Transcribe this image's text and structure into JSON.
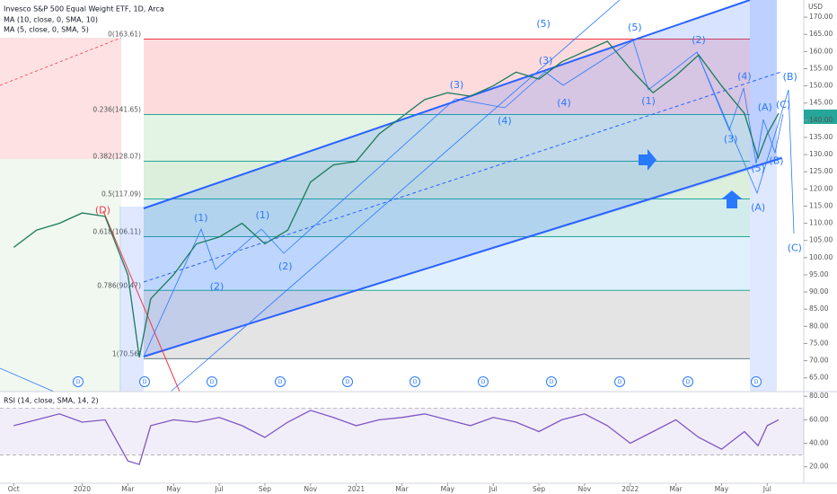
{
  "chart_data": [
    {
      "type": "line",
      "title": "Invesco S&P 500 Equal Weight ETF, 1D, Arca",
      "indicators": [
        "MA (10, close, 0, SMA, 10)",
        "MA (5, close, 0, SMA, 5)"
      ],
      "y_unit": "USD",
      "x": [
        0,
        1,
        2,
        3,
        4,
        5,
        5.5,
        6,
        7,
        8,
        9,
        10,
        11,
        12,
        13,
        14,
        15,
        16,
        17,
        18,
        19,
        20,
        21,
        22,
        23,
        24,
        25,
        26,
        27,
        28,
        29,
        30,
        31,
        32,
        32.6,
        33,
        33.5
      ],
      "series": [
        {
          "color": "#1b7a5a",
          "values": [
            103,
            108,
            110,
            113,
            112,
            95,
            71,
            88,
            95,
            104,
            106,
            110,
            104,
            108,
            122,
            127,
            128,
            136,
            141,
            146,
            148,
            147,
            150,
            154,
            152,
            157,
            160,
            163,
            155,
            148,
            153,
            159,
            150,
            142,
            129,
            136,
            142
          ]
        }
      ],
      "xlim": [
        -0.6,
        34.6
      ],
      "xticks": [
        {
          "value": 0,
          "label": "Oct"
        },
        {
          "value": 3,
          "label": "2020"
        },
        {
          "value": 5,
          "label": "Mar"
        },
        {
          "value": 7,
          "label": "May"
        },
        {
          "value": 9,
          "label": "Jul"
        },
        {
          "value": 11,
          "label": "Sep"
        },
        {
          "value": 13,
          "label": "Nov"
        },
        {
          "value": 15,
          "label": "2021"
        },
        {
          "value": 17,
          "label": "Mar"
        },
        {
          "value": 19,
          "label": "May"
        },
        {
          "value": 21,
          "label": "Jul"
        },
        {
          "value": 23,
          "label": "Sep"
        },
        {
          "value": 25,
          "label": "Nov"
        },
        {
          "value": 27,
          "label": "2022"
        },
        {
          "value": 29,
          "label": "Mar"
        },
        {
          "value": 31,
          "label": "May"
        },
        {
          "value": 33,
          "label": "Jul"
        }
      ],
      "ylim": [
        61,
        175
      ],
      "yticks": [
        {
          "value": 65,
          "label": "65.00"
        },
        {
          "value": 70,
          "label": "70.00"
        },
        {
          "value": 75,
          "label": "75.00"
        },
        {
          "value": 80,
          "label": "80.00"
        },
        {
          "value": 85,
          "label": "85.00"
        },
        {
          "value": 90,
          "label": "90.00"
        },
        {
          "value": 95,
          "label": "95.00"
        },
        {
          "value": 100,
          "label": "100.00"
        },
        {
          "value": 105,
          "label": "105.00"
        },
        {
          "value": 110,
          "label": "110.00"
        },
        {
          "value": 115,
          "label": "115.00"
        },
        {
          "value": 120,
          "label": "120.00"
        },
        {
          "value": 125,
          "label": "125.00"
        },
        {
          "value": 130,
          "label": "130.00"
        },
        {
          "value": 135,
          "label": "135.00"
        },
        {
          "value": 140,
          "label": "140.00"
        },
        {
          "value": 145,
          "label": "145.00"
        },
        {
          "value": 150,
          "label": "150.00"
        },
        {
          "value": 155,
          "label": "155.00"
        },
        {
          "value": 160,
          "label": "160.00"
        },
        {
          "value": 165,
          "label": "165.00"
        },
        {
          "value": 170,
          "label": "170.00"
        }
      ],
      "fib_levels": [
        {
          "label": "0(163.61)",
          "value": 163.61,
          "color": "rgba(242,54,69,0.18)"
        },
        {
          "label": "0.236(141.65)",
          "value": 141.65,
          "color": "rgba(129,199,132,0.22)"
        },
        {
          "label": "0.382(128.07)",
          "value": 128.07,
          "color": "rgba(76,175,80,0.2)"
        },
        {
          "label": "0.5(117.09)",
          "value": 117.09,
          "color": "rgba(0,150,136,0.18)"
        },
        {
          "label": "0.618(106.11)",
          "value": 106.11,
          "color": "rgba(100,181,246,0.2)"
        },
        {
          "label": "0.786(90.47)",
          "value": 90.47,
          "color": "rgba(120,120,120,0.2)"
        },
        {
          "label": "1(70.56)",
          "value": 70.56,
          "color": "#607d8b"
        }
      ],
      "waves": [
        {
          "label": "(D)",
          "x": 3.9,
          "y": 113.7,
          "color": "#f23645"
        },
        {
          "label": "(1)",
          "x": 8.2,
          "y": 111.4,
          "color": "#2979ff"
        },
        {
          "label": "(2)",
          "x": 8.9,
          "y": 91.5,
          "color": "#2979ff"
        },
        {
          "label": "(1)",
          "x": 10.9,
          "y": 112.2,
          "color": "#2979ff"
        },
        {
          "label": "(2)",
          "x": 11.9,
          "y": 97.3,
          "color": "#2979ff"
        },
        {
          "label": "(3)",
          "x": 19.4,
          "y": 150.1,
          "color": "#2979ff"
        },
        {
          "label": "(4)",
          "x": 21.5,
          "y": 139.7,
          "color": "#2979ff"
        },
        {
          "label": "(5)",
          "x": 23.2,
          "y": 167.9,
          "color": "#2979ff"
        },
        {
          "label": "(3)",
          "x": 23.3,
          "y": 157.2,
          "color": "#2979ff"
        },
        {
          "label": "(4)",
          "x": 24.1,
          "y": 144.9,
          "color": "#2979ff"
        },
        {
          "label": "(5)",
          "x": 27.2,
          "y": 166.9,
          "color": "#2979ff"
        },
        {
          "label": "(1)",
          "x": 27.8,
          "y": 145.4,
          "color": "#2979ff"
        },
        {
          "label": "(2)",
          "x": 30.0,
          "y": 163.2,
          "color": "#2979ff"
        },
        {
          "label": "(4)",
          "x": 32.0,
          "y": 152.7,
          "color": "#2979ff"
        },
        {
          "label": "(3)",
          "x": 31.4,
          "y": 134.4,
          "color": "#2979ff"
        },
        {
          "label": "(A)",
          "x": 32.9,
          "y": 143.6,
          "color": "#2979ff"
        },
        {
          "label": "(C)",
          "x": 33.7,
          "y": 144.4,
          "color": "#2979ff"
        },
        {
          "label": "(B)",
          "x": 34.0,
          "y": 152.5,
          "color": "#2979ff"
        },
        {
          "label": "(5)",
          "x": 32.6,
          "y": 125.8,
          "color": "#2979ff"
        },
        {
          "label": "(B)",
          "x": 33.4,
          "y": 128.1,
          "color": "#2979ff"
        },
        {
          "label": "(A)",
          "x": 32.6,
          "y": 114.5,
          "color": "#2979ff"
        },
        {
          "label": "(C)",
          "x": 34.2,
          "y": 102.7,
          "color": "#2979ff"
        }
      ]
    },
    {
      "type": "line",
      "title": "RSI (14, close, SMA, 14, 2)",
      "x": [
        0,
        1,
        2,
        3,
        4,
        5,
        5.5,
        6,
        7,
        8,
        9,
        10,
        11,
        12,
        13,
        14,
        15,
        16,
        17,
        18,
        19,
        20,
        21,
        22,
        23,
        24,
        25,
        26,
        27,
        28,
        29,
        30,
        31,
        32,
        32.6,
        33,
        33.5
      ],
      "series": [
        {
          "color": "#7e57c2",
          "values": [
            55,
            60,
            65,
            58,
            60,
            25,
            22,
            55,
            60,
            58,
            62,
            55,
            45,
            58,
            68,
            62,
            55,
            60,
            62,
            65,
            60,
            55,
            62,
            58,
            50,
            60,
            65,
            55,
            40,
            50,
            60,
            45,
            35,
            50,
            38,
            55,
            60
          ]
        }
      ],
      "ylim": [
        6,
        84
      ],
      "yticks": [
        {
          "value": 20,
          "label": "20.00"
        },
        {
          "value": 40,
          "label": "40.00"
        },
        {
          "value": 60,
          "label": "60.00"
        },
        {
          "value": 80,
          "label": "80.00"
        }
      ]
    }
  ]
}
